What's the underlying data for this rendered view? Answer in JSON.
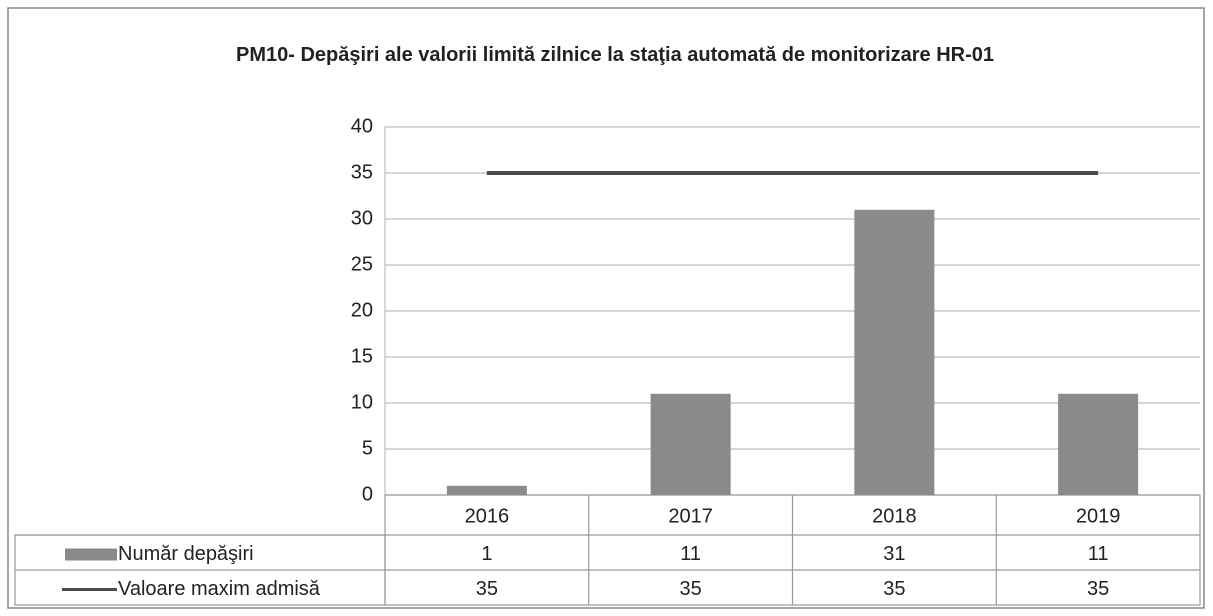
{
  "chart_data": {
    "type": "bar",
    "title": "PM10- Depăşiri ale valorii limită zilnice la staţia automată de monitorizare HR-01",
    "categories": [
      "2016",
      "2017",
      "2018",
      "2019"
    ],
    "series": [
      {
        "name": "Număr depăşiri",
        "type": "bar",
        "color": "#8a8a8a",
        "values": [
          1,
          11,
          31,
          11
        ]
      },
      {
        "name": "Valoare maxim admisă",
        "type": "line",
        "color": "#4a4a4a",
        "values": [
          35,
          35,
          35,
          35
        ]
      }
    ],
    "ylim": [
      0,
      40
    ],
    "yticks": [
      0,
      5,
      10,
      15,
      20,
      25,
      30,
      35,
      40
    ],
    "grid": true,
    "legend": "table"
  }
}
